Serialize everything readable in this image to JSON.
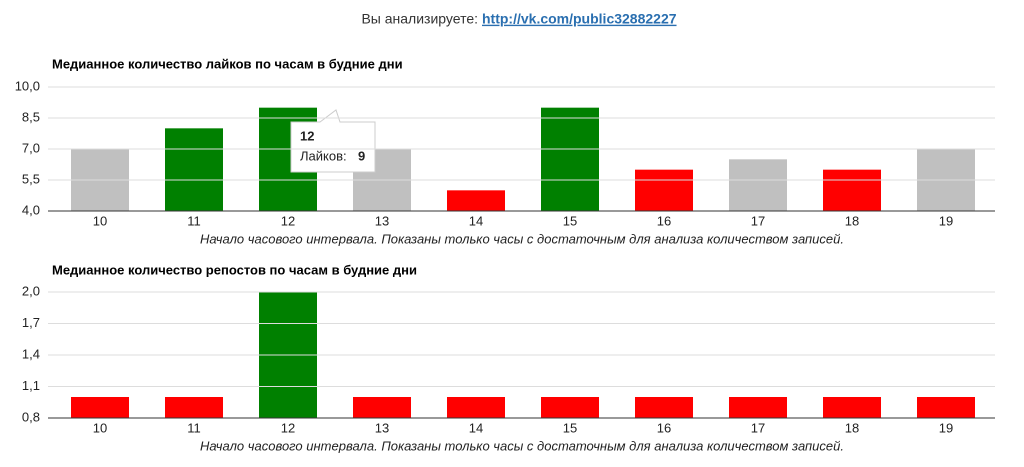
{
  "header": {
    "label": "Вы анализируете:",
    "link": "http://vk.com/public32882227"
  },
  "chart_data": [
    {
      "type": "bar",
      "title": "Медианное количество лайков по часам в будние дни",
      "categories": [
        "10",
        "11",
        "12",
        "13",
        "14",
        "15",
        "16",
        "17",
        "18",
        "19"
      ],
      "values": [
        7,
        8,
        9,
        7,
        5,
        9,
        6,
        6.5,
        6,
        7
      ],
      "colors": [
        "#c0c0c0",
        "#008000",
        "#008000",
        "#c0c0c0",
        "#ff0000",
        "#008000",
        "#ff0000",
        "#c0c0c0",
        "#ff0000",
        "#c0c0c0"
      ],
      "ylim": [
        4,
        10
      ],
      "yticks": [
        {
          "value": 4,
          "label": "4,0"
        },
        {
          "value": 5.5,
          "label": "5,5"
        },
        {
          "value": 7,
          "label": "7,0"
        },
        {
          "value": 8.5,
          "label": "8,5"
        },
        {
          "value": 10,
          "label": "10,0"
        }
      ],
      "grid": true,
      "x_label": "Начало часового интервала. Показаны только часы с достаточным для анализа количеством записей.",
      "tooltip": {
        "index": 2,
        "label": "Лайков:"
      }
    },
    {
      "type": "bar",
      "title": "Медианное количество репостов по часам в будние дни",
      "categories": [
        "10",
        "11",
        "12",
        "13",
        "14",
        "15",
        "16",
        "17",
        "18",
        "19"
      ],
      "values": [
        1,
        1,
        2,
        1,
        1,
        1,
        1,
        1,
        1,
        1
      ],
      "colors": [
        "#ff0000",
        "#ff0000",
        "#008000",
        "#ff0000",
        "#ff0000",
        "#ff0000",
        "#ff0000",
        "#ff0000",
        "#ff0000",
        "#ff0000"
      ],
      "ylim": [
        0.8,
        2
      ],
      "yticks": [
        {
          "value": 0.8,
          "label": "0,8"
        },
        {
          "value": 1.1,
          "label": "1,1"
        },
        {
          "value": 1.4,
          "label": "1,4"
        },
        {
          "value": 1.7,
          "label": "1,7"
        },
        {
          "value": 2,
          "label": "2,0"
        }
      ],
      "grid": true,
      "x_label": "Начало часового интервала. Показаны только часы с достаточным для анализа количеством записей."
    }
  ]
}
